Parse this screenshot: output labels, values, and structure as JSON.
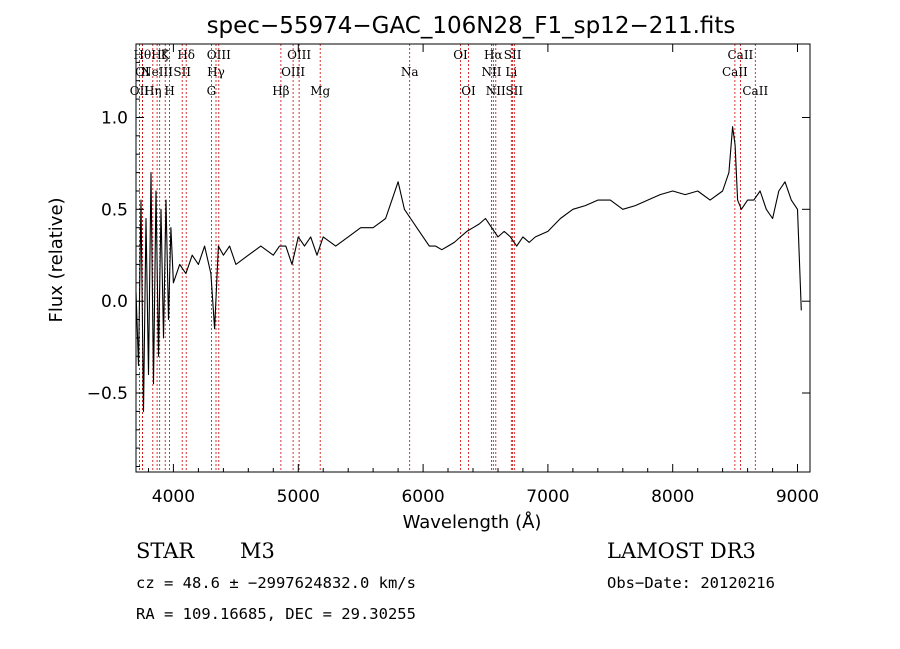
{
  "chart_data": {
    "type": "line",
    "title": "spec−55974−GAC_106N28_F1_sp12−211.fits",
    "xlabel": "Wavelength (Å)",
    "ylabel": "Flux (relative)",
    "xlim": [
      3700,
      9100
    ],
    "ylim": [
      -0.93,
      1.4
    ],
    "x_ticks": [
      4000,
      5000,
      6000,
      7000,
      8000,
      9000
    ],
    "x_tick_labels": [
      "4000",
      "5000",
      "6000",
      "7000",
      "8000",
      "9000"
    ],
    "y_ticks": [
      -0.5,
      0.0,
      0.5,
      1.0
    ],
    "y_tick_labels": [
      "−0.5",
      "0.0",
      "0.5",
      "1.0"
    ],
    "grid": false,
    "line_color": "#000000",
    "marker_color": "#cc0000",
    "series": [
      {
        "x": [
          3700,
          3720,
          3740,
          3760,
          3780,
          3800,
          3820,
          3840,
          3860,
          3880,
          3900,
          3920,
          3940,
          3960,
          3980,
          4000,
          4050,
          4100,
          4150,
          4200,
          4250,
          4300,
          4330,
          4360,
          4400,
          4450,
          4500,
          4600,
          4700,
          4800,
          4850,
          4900,
          4950,
          5000,
          5050,
          5100,
          5150,
          5200,
          5300,
          5400,
          5500,
          5600,
          5700,
          5750,
          5800,
          5850,
          5900,
          5950,
          6000,
          6050,
          6100,
          6150,
          6200,
          6250,
          6300,
          6350,
          6400,
          6450,
          6500,
          6550,
          6600,
          6650,
          6700,
          6750,
          6800,
          6850,
          6900,
          7000,
          7100,
          7200,
          7300,
          7400,
          7500,
          7600,
          7700,
          7800,
          7900,
          8000,
          8100,
          8200,
          8300,
          8400,
          8450,
          8480,
          8500,
          8520,
          8550,
          8600,
          8650,
          8700,
          8750,
          8800,
          8850,
          8900,
          8950,
          9000,
          9030
        ],
        "y": [
          0.05,
          -0.35,
          0.55,
          -0.6,
          0.45,
          -0.4,
          0.7,
          -0.45,
          0.6,
          -0.3,
          0.5,
          -0.2,
          0.55,
          -0.1,
          0.4,
          0.1,
          0.2,
          0.15,
          0.25,
          0.2,
          0.3,
          0.15,
          -0.15,
          0.3,
          0.25,
          0.3,
          0.2,
          0.25,
          0.3,
          0.25,
          0.3,
          0.3,
          0.2,
          0.35,
          0.3,
          0.35,
          0.25,
          0.35,
          0.3,
          0.35,
          0.4,
          0.4,
          0.45,
          0.55,
          0.65,
          0.5,
          0.45,
          0.4,
          0.35,
          0.3,
          0.3,
          0.28,
          0.3,
          0.32,
          0.35,
          0.38,
          0.4,
          0.42,
          0.45,
          0.4,
          0.35,
          0.38,
          0.35,
          0.3,
          0.35,
          0.32,
          0.35,
          0.38,
          0.45,
          0.5,
          0.52,
          0.55,
          0.55,
          0.5,
          0.52,
          0.55,
          0.58,
          0.6,
          0.58,
          0.6,
          0.55,
          0.6,
          0.7,
          0.95,
          0.85,
          0.55,
          0.5,
          0.55,
          0.55,
          0.6,
          0.5,
          0.45,
          0.6,
          0.65,
          0.55,
          0.5,
          -0.05
        ]
      }
    ],
    "line_markers": [
      {
        "x": 3727,
        "label": "OII",
        "row": 2
      },
      {
        "x": 3751,
        "label": "Hθ",
        "row": 0
      },
      {
        "x": 3751,
        "label": "OI",
        "row": 1
      },
      {
        "x": 3835,
        "label": "Hη",
        "row": 2
      },
      {
        "x": 3869,
        "label": "NeIII",
        "row": 1
      },
      {
        "x": 3890,
        "label": "Hζ",
        "row": 0
      },
      {
        "x": 3934,
        "label": "K",
        "row": 0
      },
      {
        "x": 3969,
        "label": "H",
        "row": 2
      },
      {
        "x": 4070,
        "label": "SII",
        "row": 1
      },
      {
        "x": 4102,
        "label": "Hδ",
        "row": 0
      },
      {
        "x": 4304,
        "label": "G",
        "row": 2
      },
      {
        "x": 4341,
        "label": "Hγ",
        "row": 1
      },
      {
        "x": 4363,
        "label": "OIII",
        "row": 0
      },
      {
        "x": 4861,
        "label": "Hβ",
        "row": 2
      },
      {
        "x": 4959,
        "label": "OIII",
        "row": 1
      },
      {
        "x": 5007,
        "label": "OIII",
        "row": 0
      },
      {
        "x": 5176,
        "label": "Mg",
        "row": 2
      },
      {
        "x": 5893,
        "label": "Na",
        "row": 1
      },
      {
        "x": 6300,
        "label": "OI",
        "row": 0
      },
      {
        "x": 6364,
        "label": "OI",
        "row": 2
      },
      {
        "x": 6548,
        "label": "NII",
        "row": 1
      },
      {
        "x": 6563,
        "label": "Hα",
        "row": 0
      },
      {
        "x": 6583,
        "label": "NII",
        "row": 2
      },
      {
        "x": 6707,
        "label": "Li",
        "row": 1
      },
      {
        "x": 6717,
        "label": "SII",
        "row": 0
      },
      {
        "x": 6731,
        "label": "SII",
        "row": 2
      },
      {
        "x": 8498,
        "label": "CaII",
        "row": 1
      },
      {
        "x": 8542,
        "label": "CaII",
        "row": 0
      },
      {
        "x": 8662,
        "label": "CaII",
        "row": 2
      }
    ]
  },
  "info": {
    "object_class": "STAR",
    "subclass": "M3",
    "survey": "LAMOST DR3",
    "cz_line": "cz = 48.6 ± −2997624832.0 km/s",
    "obs_date": "Obs−Date: 20120216",
    "coords": "RA = 109.16685, DEC =  29.30255"
  }
}
